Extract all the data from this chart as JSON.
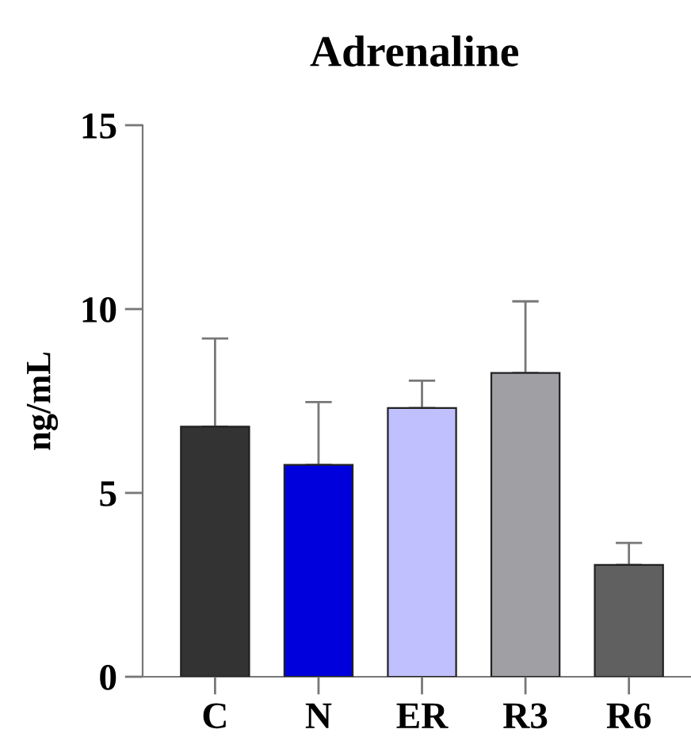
{
  "chart_data": {
    "type": "bar",
    "title": "Adrenaline",
    "ylabel": "ng/mL",
    "categories": [
      "C",
      "N",
      "ER",
      "R3",
      "R6"
    ],
    "values": [
      6.8,
      5.76,
      7.31,
      8.26,
      3.04
    ],
    "errors": [
      [
        6.8,
        9.2
      ],
      [
        5.76,
        7.47
      ],
      [
        7.31,
        8.05
      ],
      [
        8.26,
        10.21
      ],
      [
        3.04,
        3.64
      ]
    ],
    "colors": [
      "#333333",
      "#0000dd",
      "#c0c0ff",
      "#a0a0a4",
      "#606060"
    ],
    "ylim": [
      0,
      15
    ],
    "yticks": [
      0,
      5,
      10,
      15
    ],
    "grid": false,
    "legend": false
  }
}
